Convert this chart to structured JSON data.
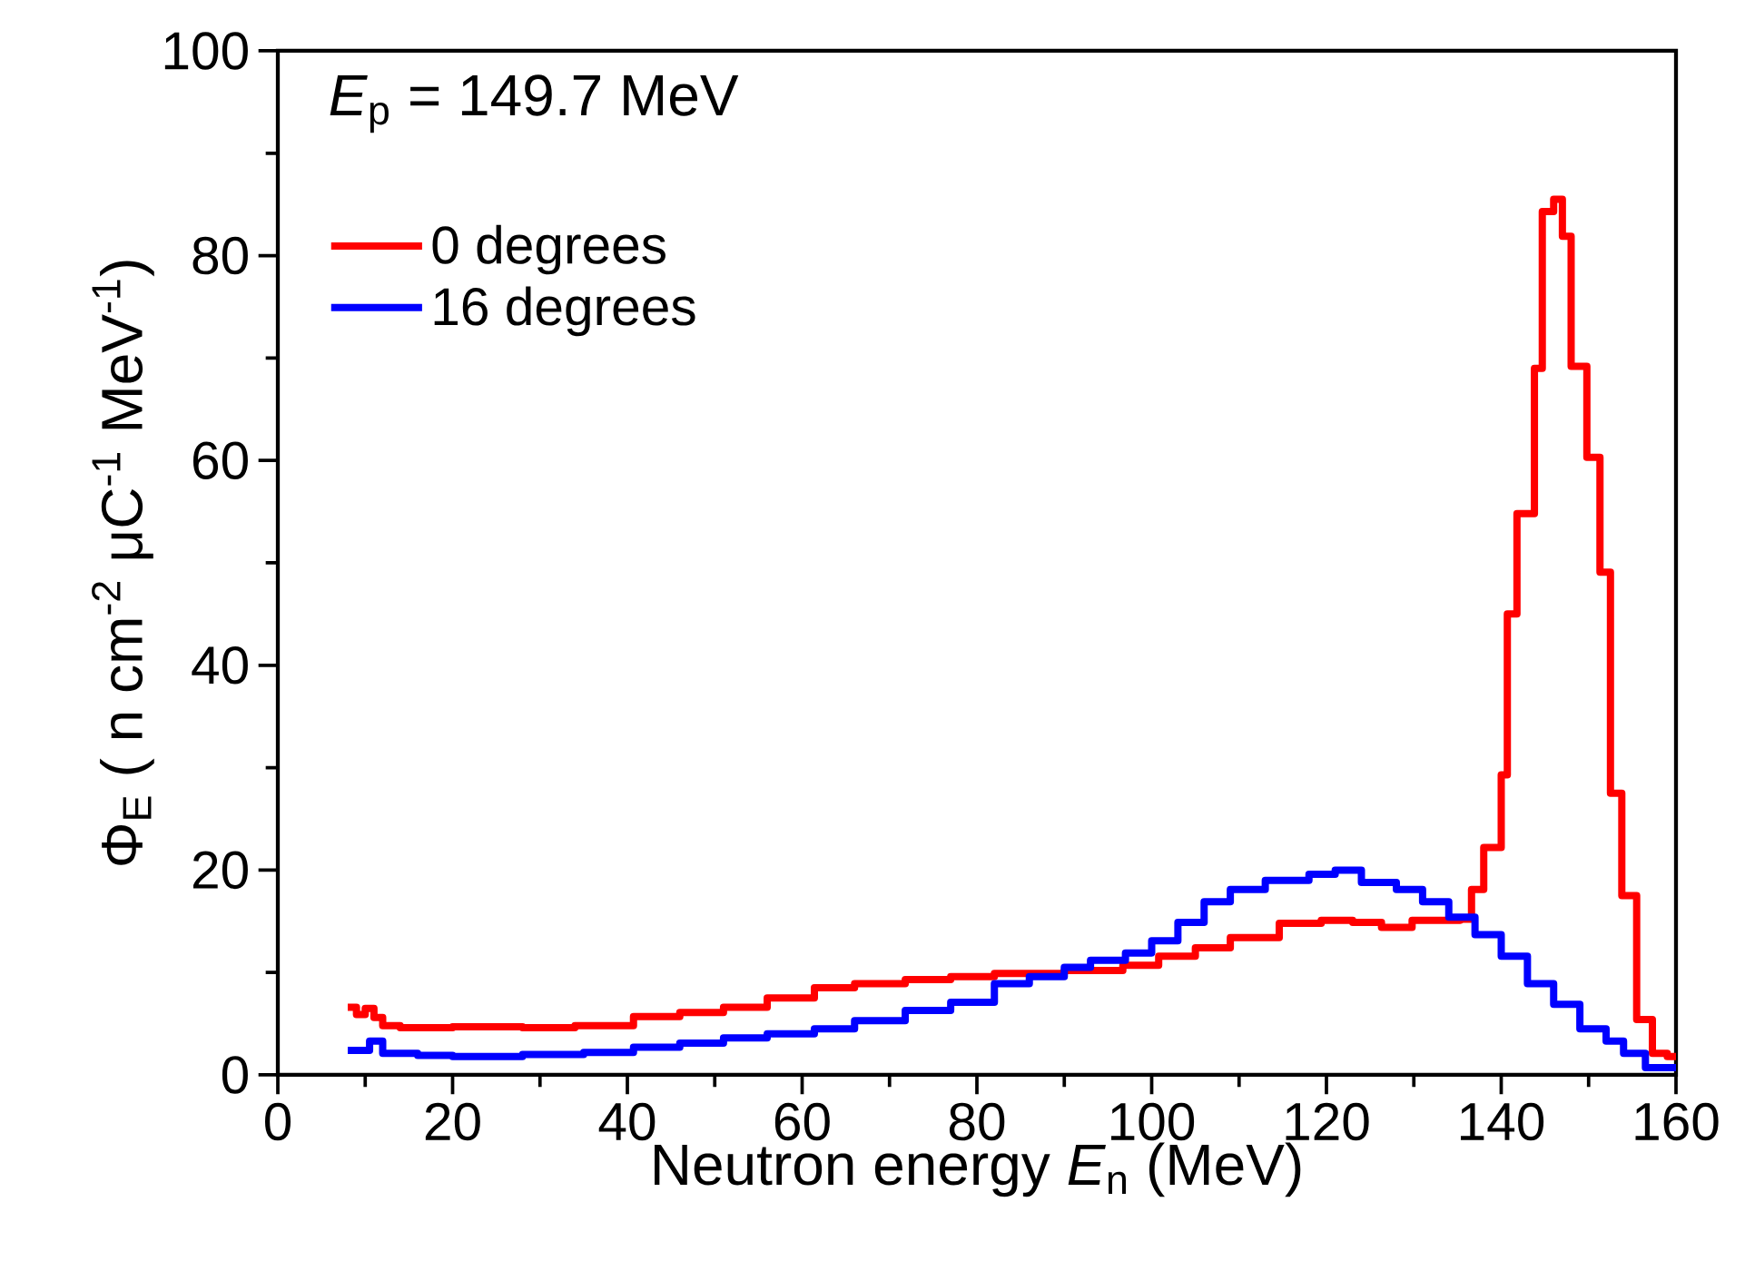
{
  "chart_data": {
    "type": "step",
    "xlabel": "Neutron energy *E*$_{n}$ (MeV)",
    "ylabel": "Φ$_{E}$ ( n cm$^{-2}$ μC$^{-1}$ MeV$^{-1}$)",
    "annotations": [
      "*E*$_{p}$ = 149.7 MeV"
    ],
    "xlim": [
      0,
      160
    ],
    "ylim": [
      0,
      100
    ],
    "xticks": [
      0,
      20,
      40,
      60,
      80,
      100,
      120,
      140,
      160
    ],
    "yticks": [
      0,
      20,
      40,
      60,
      80,
      100
    ],
    "legend": "top left",
    "grid": false,
    "series": [
      {
        "name": "0 degrees",
        "color": "#ff0000",
        "x": [
          8,
          9,
          10,
          11,
          12,
          14,
          20,
          28,
          34,
          40.7,
          46,
          51,
          56,
          61.4,
          66,
          71.8,
          77,
          82,
          90,
          96.7,
          100.8,
          105,
          109,
          114.6,
          119.4,
          123,
          126.3,
          129.8,
          135.3,
          136.6,
          138,
          140,
          140.7,
          141.8,
          143.8,
          144.7,
          146,
          147,
          148,
          149.8,
          151.3,
          152.5,
          153.8,
          155.5,
          157.3,
          159,
          160
        ],
        "values": [
          6.6,
          5.9,
          6.5,
          5.6,
          4.8,
          4.6,
          4.7,
          4.6,
          4.8,
          5.7,
          6.1,
          6.6,
          7.5,
          8.5,
          8.9,
          9.3,
          9.6,
          9.9,
          10.2,
          10.7,
          11.6,
          12.4,
          13.4,
          14.8,
          15.1,
          14.9,
          14.4,
          15.1,
          15.2,
          18.1,
          22.2,
          29.3,
          45,
          54.8,
          69,
          84.3,
          85.5,
          81.9,
          69.2,
          60.3,
          49.1,
          27.5,
          17.5,
          5.4,
          2.1,
          1.8,
          1.8
        ]
      },
      {
        "name": "16 degrees",
        "color": "#0000ff",
        "x": [
          8,
          10.5,
          12,
          16,
          20,
          28,
          35,
          40.7,
          46,
          51,
          56,
          61.4,
          66,
          71.8,
          77,
          82,
          86,
          90,
          93,
          97,
          100,
          103,
          106,
          109,
          113,
          118,
          121,
          124,
          128,
          131,
          134,
          137,
          140,
          143,
          146,
          149,
          152,
          154,
          156.5,
          160
        ],
        "values": [
          2.4,
          3.3,
          2.1,
          1.9,
          1.8,
          2.0,
          2.2,
          2.7,
          3.1,
          3.6,
          4.0,
          4.5,
          5.3,
          6.3,
          7.1,
          8.9,
          9.6,
          10.5,
          11.2,
          11.9,
          13.1,
          14.9,
          16.9,
          18.1,
          19.0,
          19.6,
          20.0,
          18.8,
          18.1,
          16.9,
          15.4,
          13.7,
          11.6,
          8.9,
          6.9,
          4.5,
          3.3,
          2.1,
          0.7,
          0.7
        ]
      }
    ]
  }
}
